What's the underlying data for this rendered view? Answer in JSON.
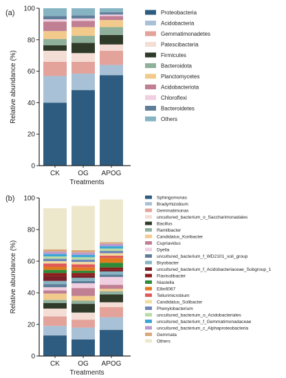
{
  "chart_data": [
    {
      "panel_label": "(a)",
      "type": "bar",
      "stacked": true,
      "xlabel": "Treatments",
      "ylabel": "Relative abundance (%)",
      "ylim": [
        0,
        100
      ],
      "yticks": [
        0,
        20,
        40,
        60,
        80,
        100
      ],
      "categories": [
        "CK",
        "OG",
        "APOG"
      ],
      "legend_position": "right",
      "series": [
        {
          "name": "Proteobacteria",
          "color": "#2e5c80",
          "values": [
            40,
            48,
            57.5
          ]
        },
        {
          "name": "Acidobacteria",
          "color": "#a9c1d6",
          "values": [
            17,
            10.5,
            6.5
          ]
        },
        {
          "name": "Gemmatimonadetes",
          "color": "#e3a29a",
          "values": [
            9,
            7.5,
            9
          ]
        },
        {
          "name": "Patescibacteria",
          "color": "#f3ddd5",
          "values": [
            7,
            5.5,
            4
          ]
        },
        {
          "name": "Firmicutes",
          "color": "#2f3a29",
          "values": [
            3.5,
            6.5,
            6
          ]
        },
        {
          "name": "Bacteroidota",
          "color": "#8fb09a",
          "values": [
            4,
            4.5,
            5
          ]
        },
        {
          "name": "Planctomycetes",
          "color": "#f2cb8c",
          "values": [
            5,
            5.5,
            4.5
          ]
        },
        {
          "name": "Acidobacteriota",
          "color": "#c07f93",
          "values": [
            6,
            4,
            2.5
          ]
        },
        {
          "name": "Chloroflexi",
          "color": "#f0cfe0",
          "values": [
            1.5,
            1.5,
            1
          ]
        },
        {
          "name": "Bacteroidetes",
          "color": "#5f7d99",
          "values": [
            2,
            2,
            1.5
          ]
        },
        {
          "name": "Others",
          "color": "#86b4c2",
          "values": [
            5,
            4.5,
            2.5
          ]
        }
      ]
    },
    {
      "panel_label": "(b)",
      "type": "bar",
      "stacked": true,
      "xlabel": "Treatments",
      "ylabel": "Relative abundance (%)",
      "ylim": [
        0,
        100
      ],
      "yticks": [
        0,
        20,
        40,
        60,
        80,
        100
      ],
      "categories": [
        "CK",
        "OG",
        "APOG"
      ],
      "legend_position": "right",
      "series": [
        {
          "name": "Sphingomonas",
          "color": "#2e5c80",
          "values": [
            13,
            10.5,
            16.5
          ]
        },
        {
          "name": "Bradyrhizobium",
          "color": "#a9c1d6",
          "values": [
            6,
            7.5,
            8
          ]
        },
        {
          "name": "Gemmatimonas",
          "color": "#e3a29a",
          "values": [
            6,
            5,
            6.5
          ]
        },
        {
          "name": "uncultured_bacterium_o_Saccharimonadales",
          "color": "#f3ddd5",
          "values": [
            5,
            4.5,
            3
          ]
        },
        {
          "name": "Bacillus",
          "color": "#2f3a29",
          "values": [
            3.5,
            5.5,
            5
          ]
        },
        {
          "name": "Ramlibacter",
          "color": "#8fb09a",
          "values": [
            2,
            2,
            2
          ]
        },
        {
          "name": "Candidatus_Koribacter",
          "color": "#f2cb8c",
          "values": [
            4,
            3,
            1.5
          ]
        },
        {
          "name": "Cupriavidus",
          "color": "#c07f93",
          "values": [
            2,
            5,
            2.5
          ]
        },
        {
          "name": "Dyella",
          "color": "#f0cfe0",
          "values": [
            2,
            3,
            5
          ]
        },
        {
          "name": "uncultured_bacterium_f_WD2101_soil_group",
          "color": "#5f7d99",
          "values": [
            2,
            1.5,
            1.5
          ]
        },
        {
          "name": "Bryobacter",
          "color": "#86b4c2",
          "values": [
            2,
            2,
            2
          ]
        },
        {
          "name": "uncultured_bacterium_f_Acidobacteriaceae_Subgroup_1",
          "color": "#7a1f28",
          "values": [
            3,
            1.5,
            1
          ]
        },
        {
          "name": "Flavisolibacter",
          "color": "#8b1a1a",
          "values": [
            2,
            1.5,
            1.5
          ]
        },
        {
          "name": "Niastella",
          "color": "#2e8b3a",
          "values": [
            2,
            1.5,
            3
          ]
        },
        {
          "name": "Ellin6067",
          "color": "#e07a1e",
          "values": [
            2,
            2,
            3
          ]
        },
        {
          "name": "Tellurimicrobium",
          "color": "#e05a5a",
          "values": [
            2,
            2,
            1.5
          ]
        },
        {
          "name": "Candidatus_Solibacter",
          "color": "#f2dba0",
          "values": [
            1.5,
            1.5,
            1.5
          ]
        },
        {
          "name": "Phenylobacterium",
          "color": "#6f86b8",
          "values": [
            1.5,
            1.5,
            1.5
          ]
        },
        {
          "name": "uncultured_bacterium_o_Acidobacteriales",
          "color": "#b7dba3",
          "values": [
            1.5,
            1.5,
            1.5
          ]
        },
        {
          "name": "uncultured_bacterium_f_Gemmatimonadaceae",
          "color": "#3aa6d6",
          "values": [
            1.5,
            1.5,
            1.5
          ]
        },
        {
          "name": "uncultured_bacterium_c_Alphaproteobacteria",
          "color": "#b89ad0",
          "values": [
            1.5,
            1.5,
            1.5
          ]
        },
        {
          "name": "Gemmata",
          "color": "#dba87a",
          "values": [
            1.5,
            1.5,
            1
          ]
        },
        {
          "name": "Others",
          "color": "#ede8cc",
          "values": [
            26,
            28,
            27
          ]
        }
      ]
    }
  ]
}
